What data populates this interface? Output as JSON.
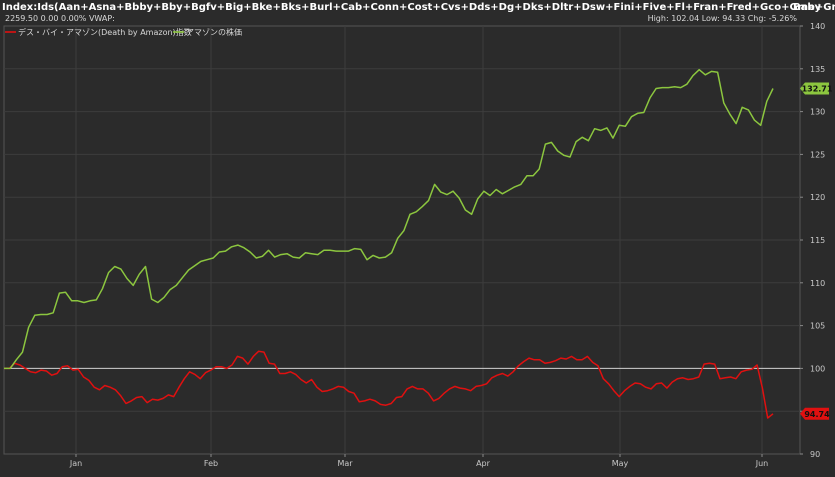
{
  "header": {
    "title": "Index:Ids(Aan+Asna+Bbby+Bby+Bgfv+Big+Bke+Bks+Burl+Cab+Conn+Cost+Cvs+Dds+Dg+Dks+Dltr+Dsw+Fini+Five+Fl+Fran+Fred+Gco+Gme+Gnc+Hibb+Hsni+Hvt+Jcp+Kirk+Kirk+Kss",
    "overlay": "Baby",
    "sub": "2259.50 0.00 0.00%  VWAP:",
    "stats": "High: 102.04 Low: 94.33 Chg: -5.26%"
  },
  "chart_data": {
    "type": "line",
    "title": "",
    "xlabel": "",
    "ylabel": "",
    "x_ticks": [
      "Jan",
      "Feb",
      "Mar",
      "Apr",
      "May",
      "Jun"
    ],
    "y_ticks": [
      90,
      95,
      100,
      105,
      110,
      115,
      120,
      125,
      130,
      135,
      140
    ],
    "ylim": [
      90,
      140
    ],
    "reference_line": 100,
    "grid": true,
    "legend": "top-left",
    "series": [
      {
        "name": "デス・バイ・アマゾン(Death by Amazon)指数",
        "color": "#e01010",
        "last_label": "94.74",
        "values": [
          100.0,
          100.0,
          100.6,
          100.4,
          100.0,
          99.6,
          99.5,
          99.8,
          99.7,
          99.2,
          99.4,
          100.2,
          100.3,
          99.8,
          99.9,
          99.0,
          98.6,
          97.8,
          97.5,
          98.0,
          97.8,
          97.5,
          96.8,
          95.9,
          96.2,
          96.6,
          96.7,
          96.0,
          96.4,
          96.3,
          96.5,
          96.9,
          96.7,
          97.8,
          98.8,
          99.6,
          99.3,
          98.8,
          99.5,
          99.8,
          100.2,
          100.2,
          100.0,
          100.4,
          101.4,
          101.2,
          100.5,
          101.4,
          102.0,
          101.9,
          100.6,
          100.5,
          99.4,
          99.4,
          99.6,
          99.3,
          98.7,
          98.3,
          98.7,
          97.8,
          97.3,
          97.4,
          97.6,
          97.9,
          97.8,
          97.3,
          97.1,
          96.1,
          96.2,
          96.4,
          96.2,
          95.8,
          95.7,
          95.9,
          96.6,
          96.7,
          97.6,
          97.9,
          97.6,
          97.6,
          97.1,
          96.2,
          96.5,
          97.1,
          97.6,
          97.9,
          97.7,
          97.6,
          97.4,
          97.9,
          98.0,
          98.2,
          98.9,
          99.2,
          99.4,
          99.1,
          99.6,
          100.3,
          100.8,
          101.2,
          101.0,
          101.0,
          100.6,
          100.7,
          100.9,
          101.2,
          101.1,
          101.4,
          101.0,
          101.0,
          101.4,
          100.7,
          100.3,
          98.8,
          98.2,
          97.4,
          96.7,
          97.4,
          97.9,
          98.3,
          98.2,
          97.8,
          97.6,
          98.2,
          98.3,
          97.7,
          98.4,
          98.8,
          98.9,
          98.7,
          98.8,
          99.0,
          100.5,
          100.6,
          100.5,
          98.8,
          98.9,
          99.0,
          98.8,
          99.6,
          99.8,
          99.9,
          100.4,
          97.7,
          94.2,
          94.7
        ]
      },
      {
        "name": "アマゾンの株価",
        "color": "#8cc63f",
        "last_label": "132.71",
        "values": [
          100.0,
          100.0,
          101.0,
          101.9,
          104.8,
          106.2,
          106.3,
          106.3,
          106.5,
          108.8,
          108.9,
          107.9,
          107.9,
          107.7,
          107.9,
          108.0,
          109.3,
          111.2,
          111.9,
          111.6,
          110.5,
          109.7,
          111.0,
          111.9,
          108.1,
          107.7,
          108.3,
          109.2,
          109.7,
          110.6,
          111.5,
          112.0,
          112.5,
          112.7,
          112.9,
          113.6,
          113.7,
          114.2,
          114.4,
          114.1,
          113.6,
          112.9,
          113.1,
          113.8,
          113.0,
          113.3,
          113.4,
          113.0,
          112.9,
          113.5,
          113.4,
          113.3,
          113.8,
          113.8,
          113.7,
          113.7,
          113.7,
          114.0,
          113.9,
          112.7,
          113.2,
          112.9,
          113.0,
          113.5,
          115.2,
          116.1,
          118.0,
          118.3,
          118.9,
          119.6,
          121.5,
          120.6,
          120.3,
          120.7,
          119.9,
          118.5,
          118.0,
          119.8,
          120.7,
          120.2,
          120.9,
          120.4,
          120.8,
          121.2,
          121.5,
          122.5,
          122.5,
          123.3,
          126.2,
          126.4,
          125.4,
          124.9,
          124.7,
          126.5,
          127.0,
          126.6,
          128.0,
          127.8,
          128.1,
          126.9,
          128.4,
          128.3,
          129.4,
          129.8,
          129.9,
          131.6,
          132.7,
          132.8,
          132.8,
          132.9,
          132.8,
          133.2,
          134.2,
          134.9,
          134.3,
          134.7,
          134.6,
          131.0,
          129.7,
          128.6,
          130.5,
          130.2,
          129.0,
          128.4,
          131.2,
          132.7
        ]
      }
    ]
  }
}
